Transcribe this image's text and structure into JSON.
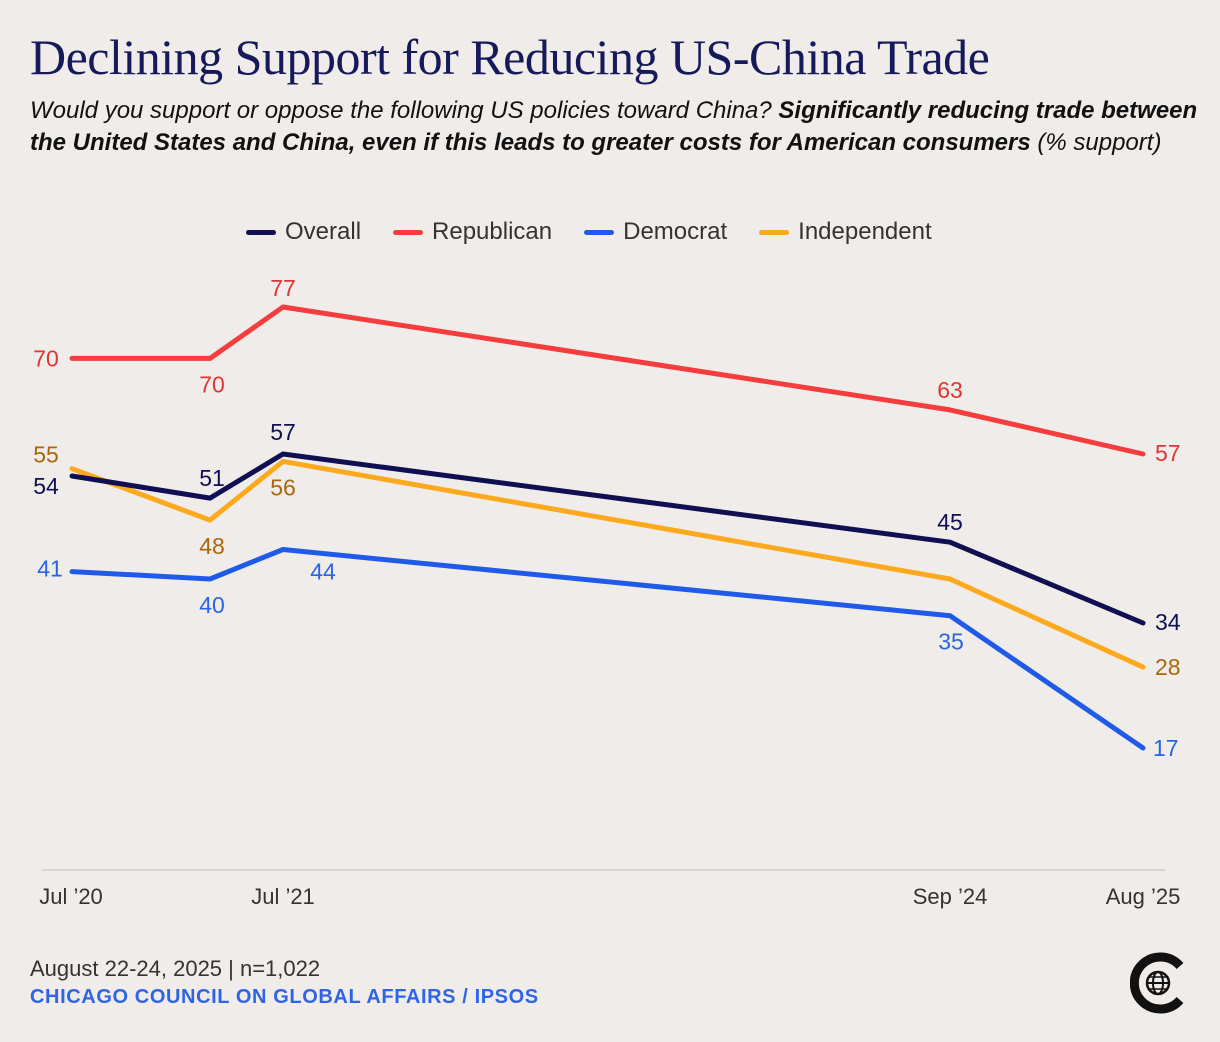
{
  "header": {
    "title": "Declining Support for Reducing US-China Trade",
    "subtitle_question": "Would you support or oppose the following US policies toward China? ",
    "subtitle_bold": "Significantly reducing trade between the United States and China, even if this leads to greater costs for American consumers",
    "subtitle_unit": " (% support)"
  },
  "legend": [
    {
      "name": "Overall",
      "color": "#100f52"
    },
    {
      "name": "Republican",
      "color": "#f53d3d"
    },
    {
      "name": "Democrat",
      "color": "#1f5be8"
    },
    {
      "name": "Independent",
      "color": "#fca91e"
    }
  ],
  "chart_data": {
    "type": "line",
    "title": "Declining Support for Reducing US-China Trade",
    "ylabel": "% support",
    "x_dates": [
      "Jul 2020",
      "Feb 2021",
      "Jul 2021",
      "Sep 2024",
      "Aug 2025"
    ],
    "x_tick_labels": [
      "Jul ’20",
      "Jul ’21",
      "Sep ’24",
      "Aug ’25"
    ],
    "ylim": [
      0,
      100
    ],
    "grid": false,
    "legend_position": "top-center",
    "series": [
      {
        "name": "Overall",
        "color": "#100f52",
        "label_color": "#100f52",
        "values": [
          54,
          51,
          57,
          45,
          34
        ]
      },
      {
        "name": "Republican",
        "color": "#f53d3d",
        "label_color": "#e03535",
        "values": [
          70,
          70,
          77,
          63,
          57
        ]
      },
      {
        "name": "Democrat",
        "color": "#1f5be8",
        "label_color": "#2a64e6",
        "values": [
          41,
          40,
          44,
          35,
          17
        ]
      },
      {
        "name": "Independent",
        "color": "#fca91e",
        "label_color": "#a8670c",
        "values": [
          55,
          48,
          56,
          null,
          28
        ]
      }
    ]
  },
  "footer": {
    "date_sample": "August 22-24, 2025 | n=1,022",
    "source": "CHICAGO COUNCIL ON GLOBAL AFFAIRS / IPSOS"
  },
  "logo": {
    "icon": "globe-c-logo-icon"
  }
}
